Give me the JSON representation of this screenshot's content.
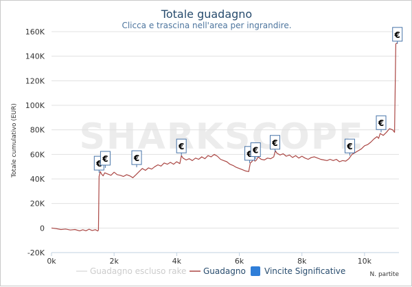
{
  "chart_data": {
    "type": "line",
    "title": "Totale guadagno",
    "subtitle": "Clicca e trascina nell'area per ingrandire.",
    "xlabel": "N. partite",
    "ylabel": "Totale cumulativo (EUR)",
    "watermark": "SHARKSCOPE",
    "xlim": [
      0,
      11100
    ],
    "ylim": [
      -20000,
      160000
    ],
    "x_ticks": [
      0,
      2000,
      4000,
      6000,
      8000,
      10000
    ],
    "x_tick_labels": [
      "0k",
      "2k",
      "4k",
      "6k",
      "8k",
      "10k"
    ],
    "y_ticks": [
      -20000,
      0,
      20000,
      40000,
      60000,
      80000,
      100000,
      120000,
      140000,
      160000
    ],
    "y_tick_labels": [
      "-20K",
      "0",
      "20K",
      "40K",
      "60K",
      "80K",
      "100K",
      "120K",
      "140K",
      "160K"
    ],
    "grid": true,
    "legend_position": "bottom",
    "series": [
      {
        "name": "Guadagno escluso rake",
        "color": "#cccccc",
        "visible": false,
        "points": []
      },
      {
        "name": "Guadagno",
        "color": "#aa4643",
        "points": [
          [
            0,
            0
          ],
          [
            150,
            -500
          ],
          [
            300,
            -1200
          ],
          [
            450,
            -800
          ],
          [
            600,
            -1600
          ],
          [
            750,
            -1200
          ],
          [
            900,
            -2300
          ],
          [
            1000,
            -1400
          ],
          [
            1100,
            -2200
          ],
          [
            1200,
            -1000
          ],
          [
            1300,
            -2000
          ],
          [
            1400,
            -1300
          ],
          [
            1480,
            -2400
          ],
          [
            1500,
            -1500
          ],
          [
            1520,
            42000
          ],
          [
            1560,
            46000
          ],
          [
            1600,
            44000
          ],
          [
            1650,
            42500
          ],
          [
            1700,
            45000
          ],
          [
            1800,
            44000
          ],
          [
            1900,
            43000
          ],
          [
            2000,
            45500
          ],
          [
            2100,
            43500
          ],
          [
            2200,
            43000
          ],
          [
            2300,
            42000
          ],
          [
            2400,
            43500
          ],
          [
            2500,
            42500
          ],
          [
            2600,
            41000
          ],
          [
            2700,
            43500
          ],
          [
            2800,
            46000
          ],
          [
            2900,
            48500
          ],
          [
            3000,
            47000
          ],
          [
            3100,
            49000
          ],
          [
            3200,
            48000
          ],
          [
            3300,
            50000
          ],
          [
            3400,
            51500
          ],
          [
            3500,
            50500
          ],
          [
            3600,
            53000
          ],
          [
            3700,
            52000
          ],
          [
            3800,
            53500
          ],
          [
            3900,
            52000
          ],
          [
            4000,
            54000
          ],
          [
            4100,
            52500
          ],
          [
            4150,
            59000
          ],
          [
            4200,
            57000
          ],
          [
            4300,
            55500
          ],
          [
            4400,
            56500
          ],
          [
            4500,
            55000
          ],
          [
            4600,
            57000
          ],
          [
            4700,
            56000
          ],
          [
            4800,
            58000
          ],
          [
            4900,
            56500
          ],
          [
            5000,
            59000
          ],
          [
            5100,
            58000
          ],
          [
            5200,
            60000
          ],
          [
            5300,
            58500
          ],
          [
            5400,
            56000
          ],
          [
            5500,
            55000
          ],
          [
            5600,
            54000
          ],
          [
            5700,
            52000
          ],
          [
            5800,
            51000
          ],
          [
            5900,
            49500
          ],
          [
            6000,
            48500
          ],
          [
            6100,
            47500
          ],
          [
            6200,
            46500
          ],
          [
            6300,
            46000
          ],
          [
            6350,
            53000
          ],
          [
            6400,
            54000
          ],
          [
            6450,
            56000
          ],
          [
            6500,
            54500
          ],
          [
            6550,
            55500
          ],
          [
            6600,
            58000
          ],
          [
            6700,
            56000
          ],
          [
            6800,
            55500
          ],
          [
            6900,
            57000
          ],
          [
            7000,
            56500
          ],
          [
            7100,
            58000
          ],
          [
            7150,
            63000
          ],
          [
            7200,
            61000
          ],
          [
            7300,
            59500
          ],
          [
            7400,
            60500
          ],
          [
            7500,
            58500
          ],
          [
            7600,
            59500
          ],
          [
            7700,
            57500
          ],
          [
            7800,
            59000
          ],
          [
            7900,
            57000
          ],
          [
            8000,
            58500
          ],
          [
            8100,
            57000
          ],
          [
            8200,
            56000
          ],
          [
            8300,
            57500
          ],
          [
            8400,
            58000
          ],
          [
            8500,
            57000
          ],
          [
            8600,
            56000
          ],
          [
            8700,
            55500
          ],
          [
            8800,
            55000
          ],
          [
            8900,
            56000
          ],
          [
            9000,
            55000
          ],
          [
            9100,
            56000
          ],
          [
            9200,
            54000
          ],
          [
            9300,
            55000
          ],
          [
            9400,
            54500
          ],
          [
            9500,
            56500
          ],
          [
            9600,
            60000
          ],
          [
            9700,
            61500
          ],
          [
            9800,
            63000
          ],
          [
            9900,
            64500
          ],
          [
            10000,
            67000
          ],
          [
            10100,
            68000
          ],
          [
            10200,
            70000
          ],
          [
            10300,
            72500
          ],
          [
            10400,
            74500
          ],
          [
            10450,
            73000
          ],
          [
            10500,
            77000
          ],
          [
            10600,
            75500
          ],
          [
            10700,
            78000
          ],
          [
            10800,
            81000
          ],
          [
            10900,
            80000
          ],
          [
            10960,
            78000
          ],
          [
            11000,
            150000
          ],
          [
            11050,
            151000
          ]
        ]
      },
      {
        "name": "Vincite Significative",
        "color": "#4572a7",
        "type": "flags",
        "symbol": "€",
        "points": [
          [
            1520,
            45000
          ],
          [
            1720,
            49000
          ],
          [
            2720,
            49500
          ],
          [
            4150,
            59000
          ],
          [
            6330,
            53000
          ],
          [
            6520,
            56000
          ],
          [
            7140,
            62000
          ],
          [
            9530,
            59000
          ],
          [
            10530,
            78000
          ],
          [
            11050,
            150000
          ]
        ]
      }
    ]
  }
}
